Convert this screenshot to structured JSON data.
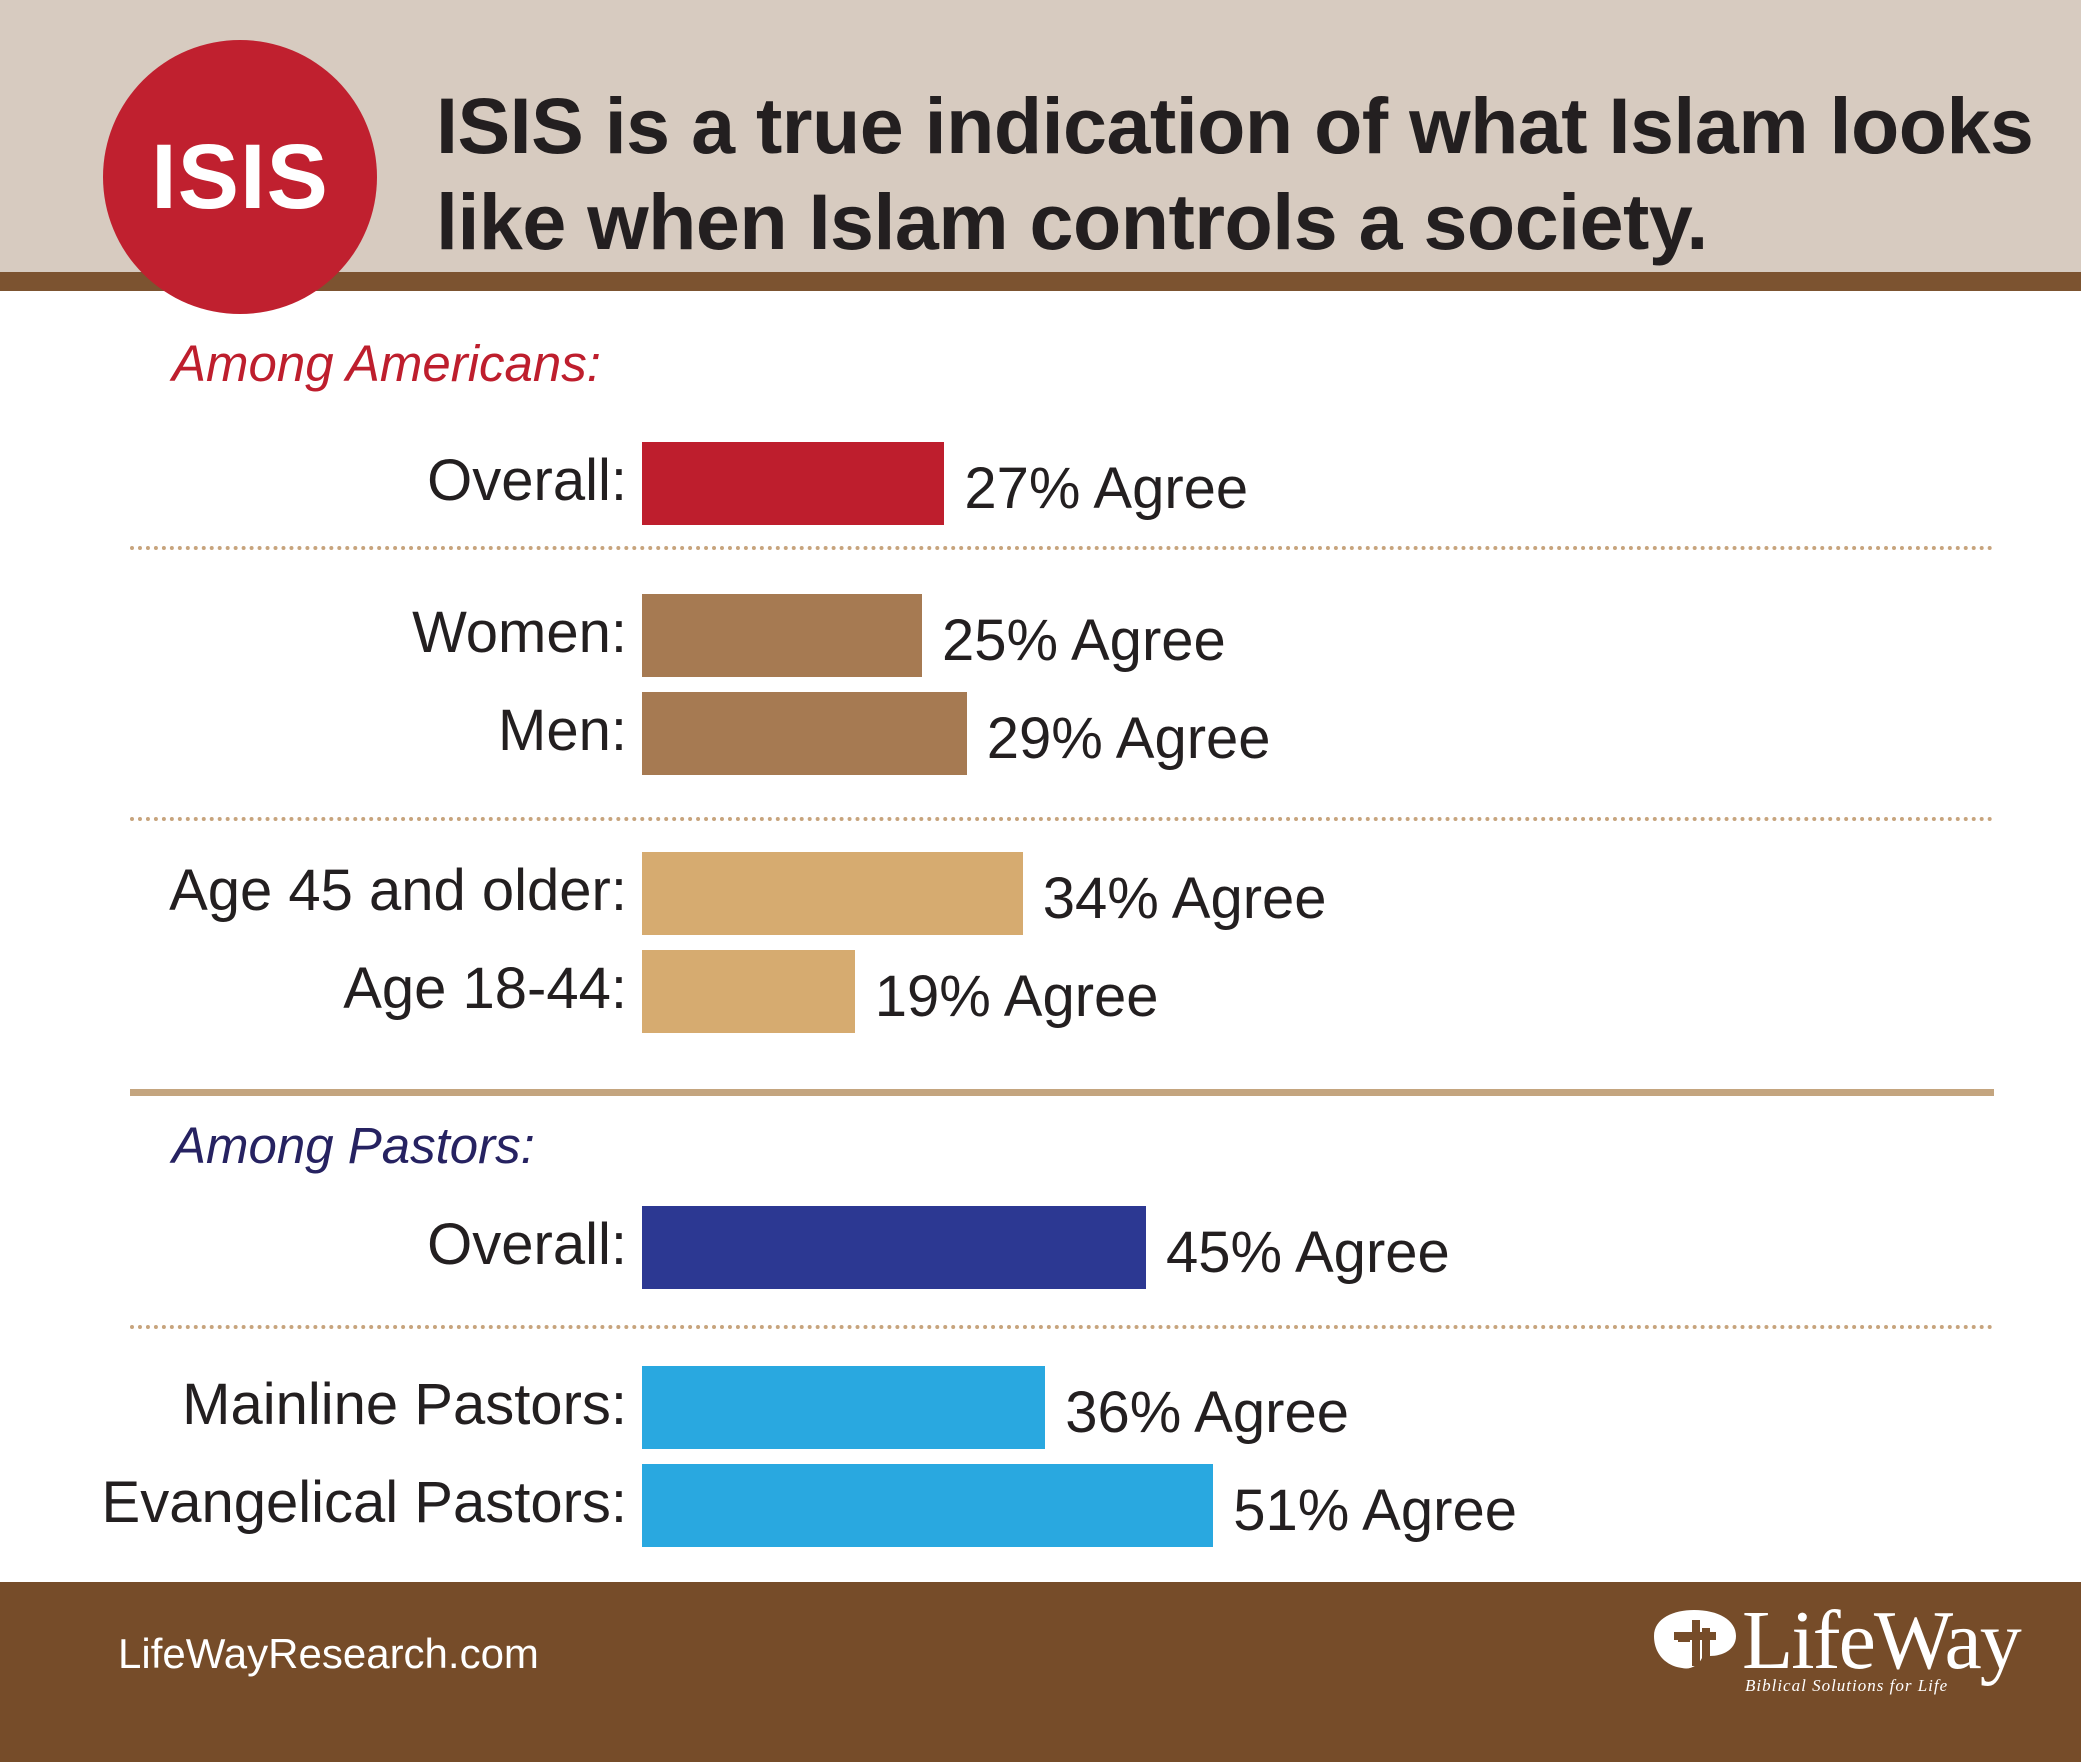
{
  "colors": {
    "header_bg": "#d7cbc0",
    "header_rule": "#7c5330",
    "badge": "#c0202f",
    "american_label": "#be1e2d",
    "pastor_label": "#262261",
    "footer_bg": "#764c29"
  },
  "header": {
    "badge": "ISIS",
    "title_line1": "ISIS is a true indication of what Islam looks",
    "title_line2": "like when Islam controls a society."
  },
  "chart_data": {
    "type": "bar",
    "orientation": "horizontal",
    "unit": "% Agree",
    "xlim": [
      0,
      100
    ],
    "grid": false,
    "groups": [
      {
        "label": "Among Americans:",
        "rows": [
          {
            "category": "Overall:",
            "value": 27,
            "value_label": "27% Agree",
            "color": "#be1e2d",
            "separator_after": true
          },
          {
            "category": "Women:",
            "value": 25,
            "value_label": "25% Agree",
            "color": "#a67a52",
            "separator_after": false
          },
          {
            "category": "Men:",
            "value": 29,
            "value_label": "29% Agree",
            "color": "#a67a52",
            "separator_after": true
          },
          {
            "category": "Age 45 and older:",
            "value": 34,
            "value_label": "34% Agree",
            "color": "#d6ab70",
            "separator_after": false
          },
          {
            "category": "Age 18-44:",
            "value": 19,
            "value_label": "19% Agree",
            "color": "#d6ab70",
            "separator_after": false
          }
        ]
      },
      {
        "label": "Among Pastors:",
        "rows": [
          {
            "category": "Overall:",
            "value": 45,
            "value_label": "45% Agree",
            "color": "#2c3892",
            "separator_after": true
          },
          {
            "category": "Mainline Pastors:",
            "value": 36,
            "value_label": "36% Agree",
            "color": "#29a8e0",
            "separator_after": false
          },
          {
            "category": "Evangelical Pastors:",
            "value": 51,
            "value_label": "51% Agree",
            "color": "#29a8e0",
            "separator_after": false
          }
        ]
      }
    ]
  },
  "footer": {
    "website": "LifeWayResearch.com",
    "logo_icon": "lifeway-cross-icon",
    "logo_name": "LifeWay",
    "logo_tagline": "Biblical Solutions for Life"
  }
}
